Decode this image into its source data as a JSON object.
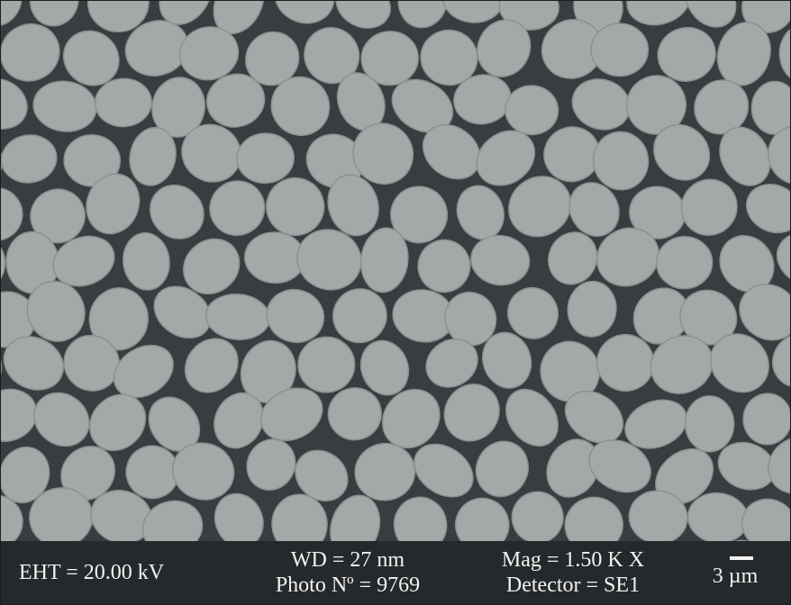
{
  "image": {
    "subject": "sem-micrograph",
    "background_color": "#3a3d3f",
    "particle_color": "#a5a8a8",
    "particle_edge_color": "#8d9090"
  },
  "info_bar": {
    "eht": "EHT = 20.00 kV",
    "wd": "WD = 27 nm",
    "photo_no": "Photo Nº = 9769",
    "mag": "Mag = 1.50 K X",
    "detector": "Detector = SE1",
    "scale_label": "3 µm"
  }
}
